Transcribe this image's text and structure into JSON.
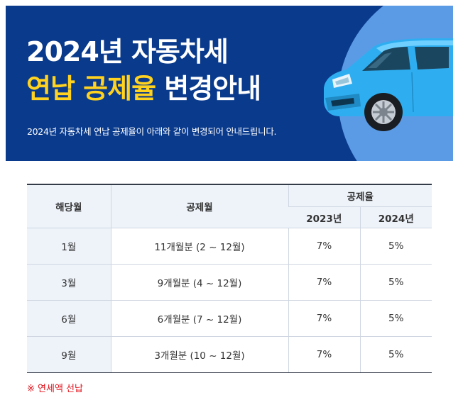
{
  "banner": {
    "title_line1": "2024년 자동차세",
    "title_line2_highlight": "연납 공제율",
    "title_line2_rest": " 변경안내",
    "subtitle": "2024년 자동차세 연납 공제율이 아래와 같이 변경되어 안내드립니다.",
    "colors": {
      "background": "#0a3a8c",
      "arc": "#5b9be6",
      "highlight": "#ffd21f",
      "car": "#2eaef0"
    }
  },
  "table": {
    "headers": {
      "month": "해당월",
      "deduction_months": "공제월",
      "rate_group": "공제율",
      "year_2023": "2023년",
      "year_2024": "2024년"
    },
    "rows": [
      {
        "month": "1월",
        "deduction_months": "11개월분 (2 ~ 12월)",
        "rate_2023": "7%",
        "rate_2024": "5%"
      },
      {
        "month": "3월",
        "deduction_months": "9개월분 (4 ~ 12월)",
        "rate_2023": "7%",
        "rate_2024": "5%"
      },
      {
        "month": "6월",
        "deduction_months": "6개월분 (7 ~ 12월)",
        "rate_2023": "7%",
        "rate_2024": "5%"
      },
      {
        "month": "9월",
        "deduction_months": "3개월분 (10 ~ 12월)",
        "rate_2023": "7%",
        "rate_2024": "5%"
      }
    ]
  },
  "note": "※ 연세액 선납"
}
